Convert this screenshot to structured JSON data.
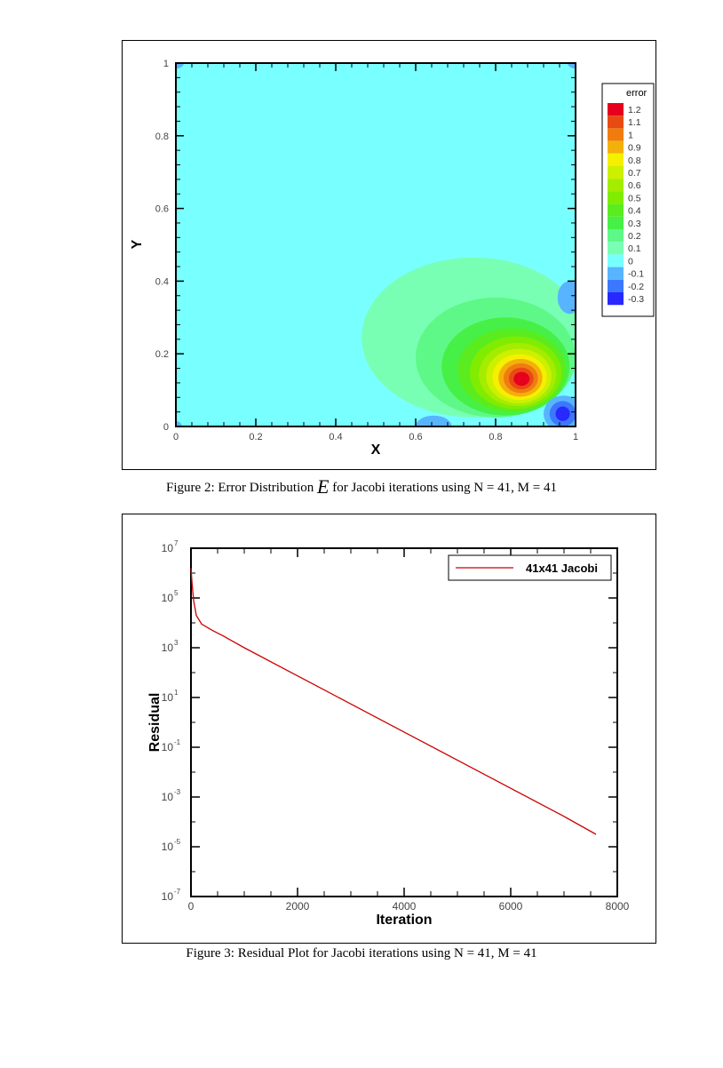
{
  "figure2": {
    "caption_prefix": "Figure 2: Error Distribution",
    "caption_symbol": "E",
    "caption_suffix": "for Jacobi iterations using N = 41, M = 41",
    "chart_data": {
      "type": "heatmap",
      "title": "",
      "xlabel": "X",
      "ylabel": "Y",
      "xlim": [
        0,
        1
      ],
      "ylim": [
        0,
        1
      ],
      "xticks": [
        0,
        0.2,
        0.4,
        0.6,
        0.8,
        1
      ],
      "xtick_labels": [
        "0",
        "0.2",
        "0.4",
        "0.6",
        "0.8",
        "1"
      ],
      "yticks": [
        0,
        0.2,
        0.4,
        0.6,
        0.8,
        1
      ],
      "ytick_labels": [
        "0",
        "0.2",
        "0.4",
        "0.6",
        "0.8",
        "1"
      ],
      "background_level": 0.05,
      "peak": {
        "x": 0.865,
        "y": 0.13,
        "value": 1.25
      },
      "legend_title": "error",
      "levels": [
        {
          "label": "1.2",
          "color": "#e6001e"
        },
        {
          "label": "1.1",
          "color": "#e84a14"
        },
        {
          "label": "1",
          "color": "#f07c10"
        },
        {
          "label": "0.9",
          "color": "#f4b00a"
        },
        {
          "label": "0.8",
          "color": "#f5f000"
        },
        {
          "label": "0.7",
          "color": "#ccf000"
        },
        {
          "label": "0.6",
          "color": "#a4ec00"
        },
        {
          "label": "0.5",
          "color": "#80ec00"
        },
        {
          "label": "0.4",
          "color": "#5aec1e"
        },
        {
          "label": "0.3",
          "color": "#46f046"
        },
        {
          "label": "0.2",
          "color": "#5ef888"
        },
        {
          "label": "0.1",
          "color": "#78ffb4"
        },
        {
          "label": "0",
          "color": "#78ffff"
        },
        {
          "label": "-0.1",
          "color": "#58b4ff"
        },
        {
          "label": "-0.2",
          "color": "#3c78ff"
        },
        {
          "label": "-0.3",
          "color": "#2828ff"
        }
      ]
    }
  },
  "figure3": {
    "caption": "Figure 3: Residual Plot for Jacobi iterations using N = 41, M = 41",
    "chart_data": {
      "type": "line",
      "title": "",
      "xlabel": "Iteration",
      "ylabel": "Residual",
      "xlim": [
        0,
        8000
      ],
      "ylim_log10": [
        -7,
        7
      ],
      "y_scale": "log",
      "xtick_labels": [
        "0",
        "2000",
        "4000",
        "6000",
        "8000"
      ],
      "xticks": [
        0,
        2000,
        4000,
        6000,
        8000
      ],
      "ytick_exponents": [
        7,
        5,
        3,
        1,
        -1,
        -3,
        -5,
        -7
      ],
      "ytick_base": "10",
      "ytick_sup": [
        "7",
        "5",
        "3",
        "1",
        "-1",
        "-3",
        "-5",
        "-7"
      ],
      "legend_position": "top-right",
      "series": [
        {
          "name": "41x41 Jacobi",
          "color": "#cc0000",
          "x": [
            0,
            20,
            50,
            100,
            200,
            400,
            600,
            800,
            1000,
            2000,
            3000,
            4000,
            5000,
            6000,
            7000,
            7600
          ],
          "log10_y": [
            6.2,
            5.6,
            4.9,
            4.3,
            3.95,
            3.7,
            3.48,
            3.24,
            3.0,
            1.87,
            0.74,
            -0.39,
            -1.52,
            -2.65,
            -3.78,
            -4.5
          ]
        }
      ]
    }
  }
}
